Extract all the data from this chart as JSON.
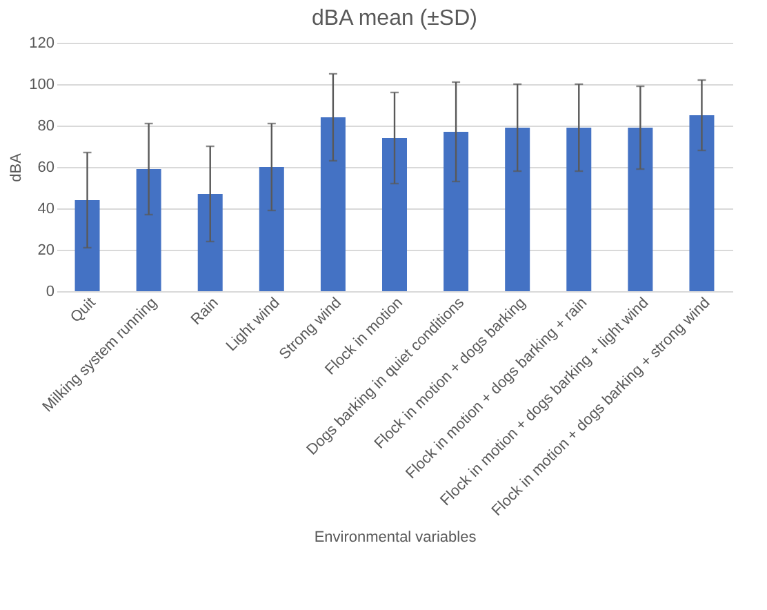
{
  "chart_data": {
    "type": "bar",
    "title": "dBA mean (±SD)",
    "xlabel": "Environmental variables",
    "ylabel": "dBA",
    "categories": [
      "Quit",
      "Milking system running",
      "Rain",
      "Light wind",
      "Strong wind",
      "Flock in motion",
      "Dogs barking in quiet conditions",
      "Flock in motion + dogs barking",
      "Flock in motion + dogs barking + rain",
      "Flock in motion + dogs barking + light wind",
      "Flock in motion + dogs barking + strong wind"
    ],
    "values": [
      44,
      59,
      47,
      60,
      84,
      74,
      77,
      79,
      79,
      79,
      85
    ],
    "errors": [
      23,
      22,
      23,
      21,
      21,
      22,
      24,
      21,
      21,
      20,
      17
    ],
    "color": "#4472c4",
    "ylim": [
      0,
      120
    ],
    "yticks": [
      0,
      20,
      40,
      60,
      80,
      100,
      120
    ],
    "grid": "y"
  }
}
